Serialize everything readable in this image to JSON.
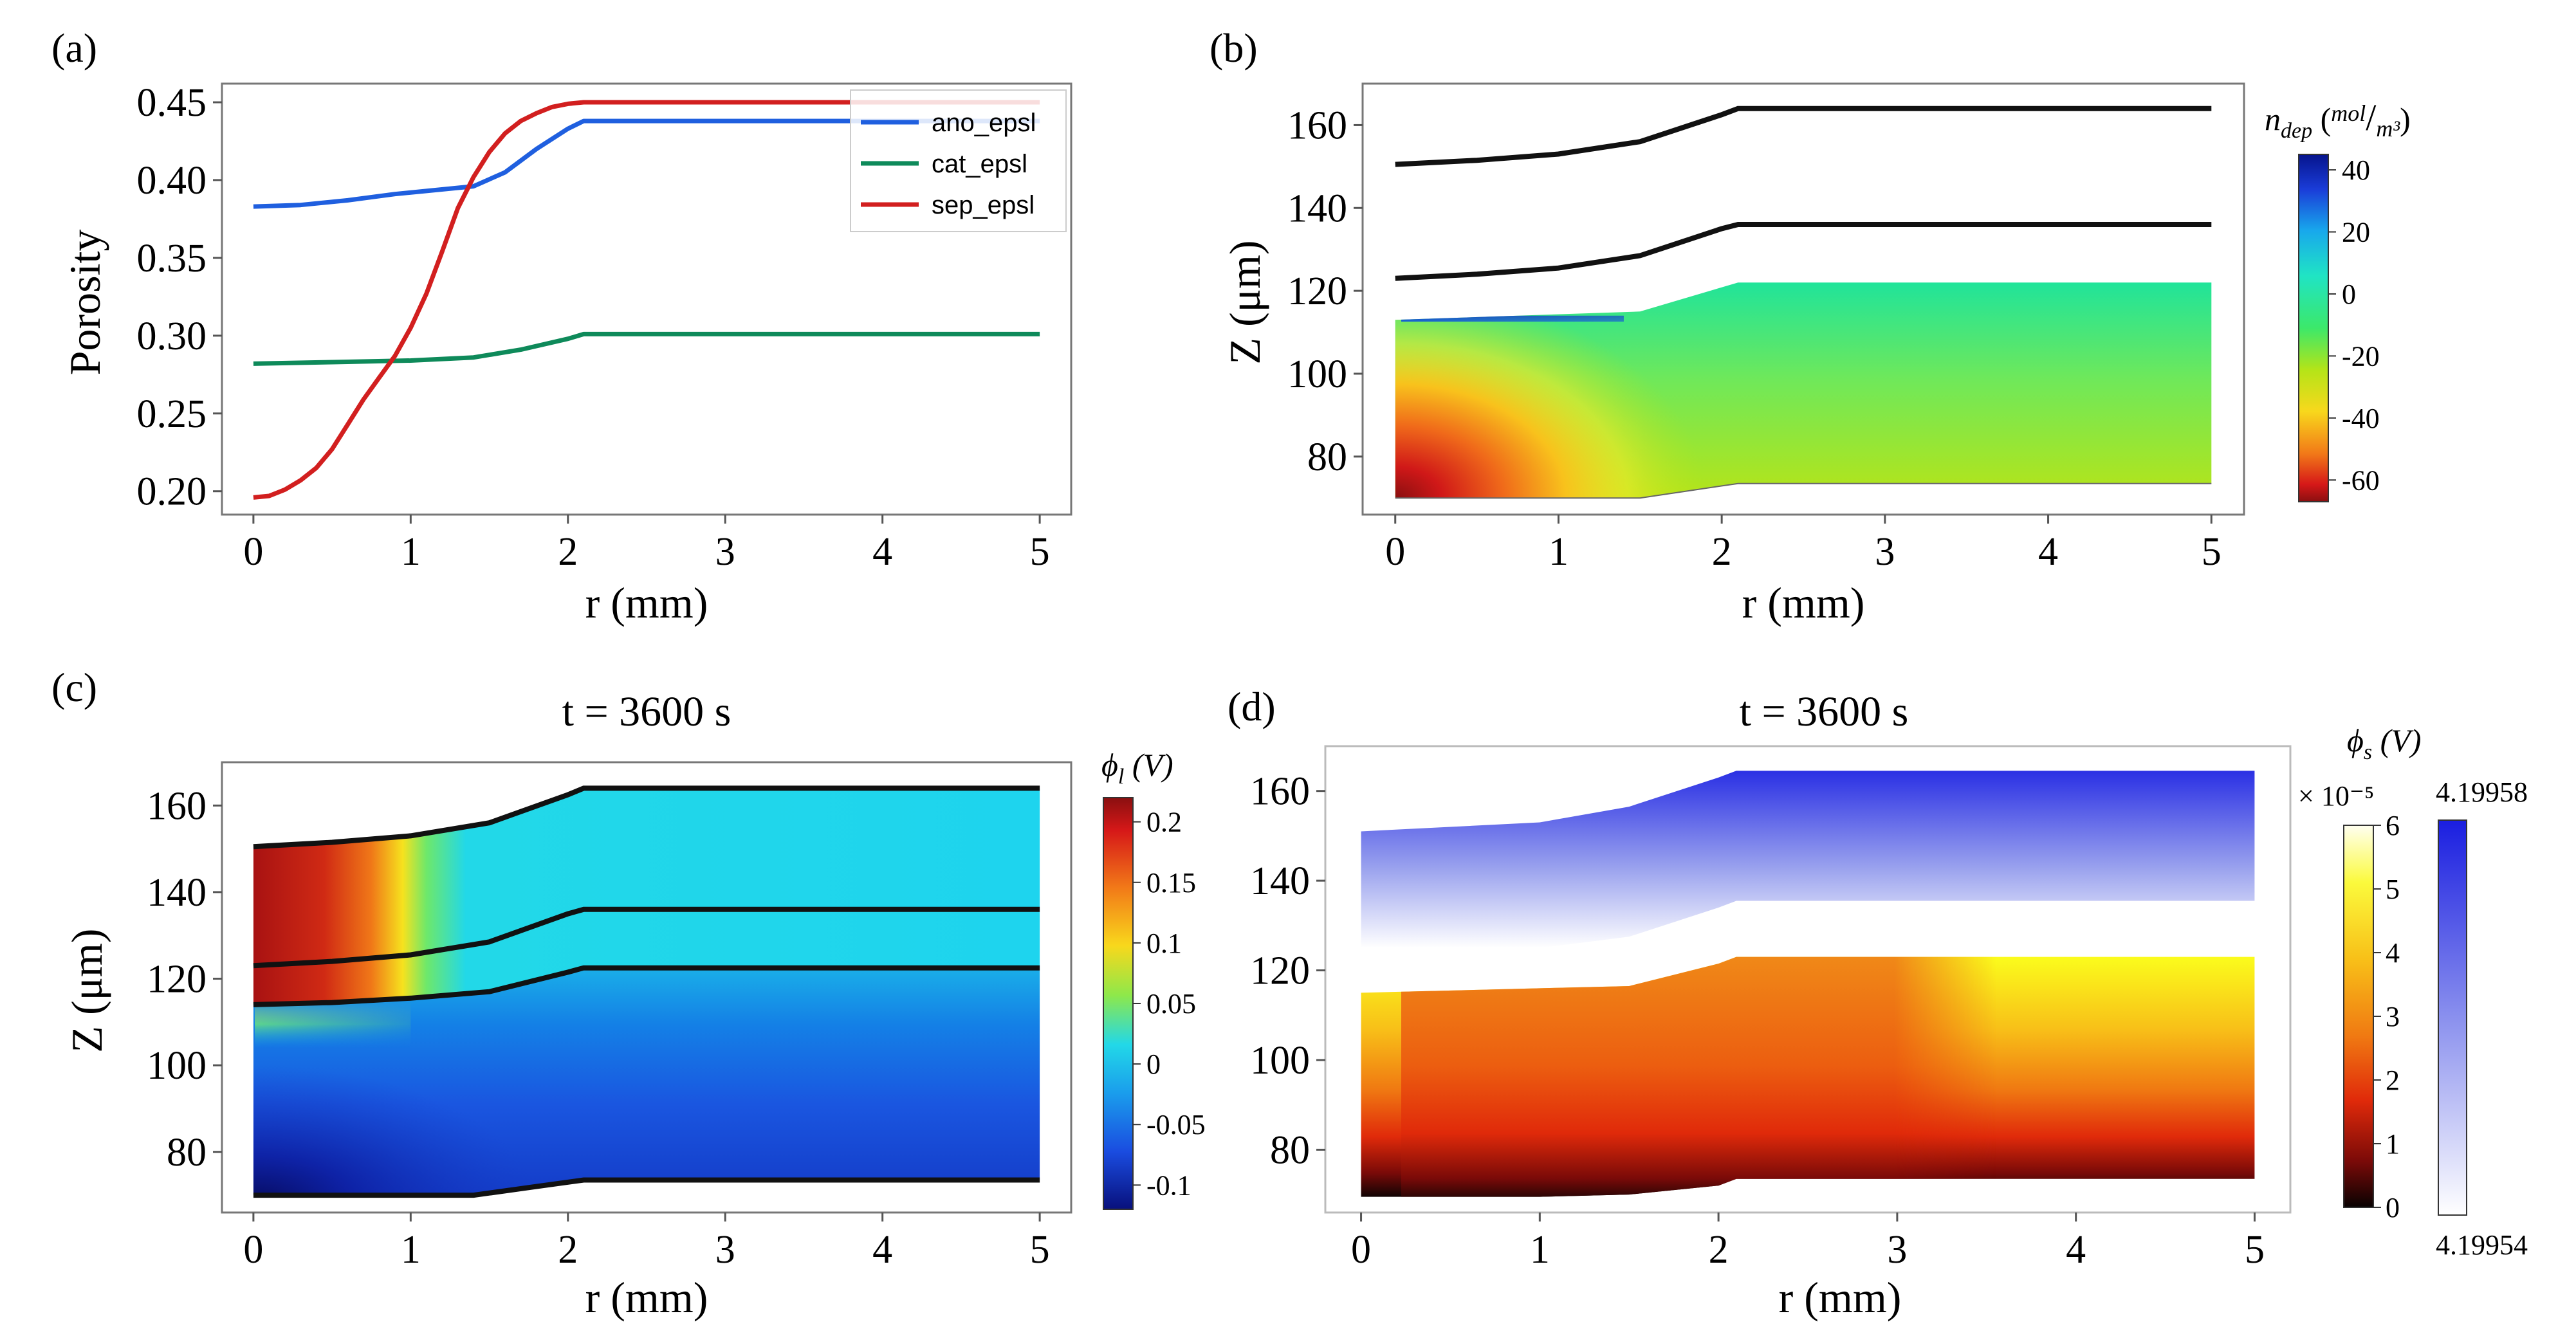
{
  "chart_data": [
    {
      "id": "a",
      "panel_label": "(a)",
      "type": "line",
      "title": "",
      "xlabel": "r (mm)",
      "ylabel": "Porosity",
      "xlim": [
        -0.2,
        5.2
      ],
      "ylim": [
        0.185,
        0.462
      ],
      "xticks": [
        0,
        1,
        2,
        3,
        4,
        5
      ],
      "xtick_labels": [
        "0",
        "1",
        "2",
        "3",
        "4",
        "5"
      ],
      "yticks": [
        0.2,
        0.25,
        0.3,
        0.35,
        0.4,
        0.45
      ],
      "ytick_labels": [
        "0.20",
        "0.25",
        "0.30",
        "0.35",
        "0.40",
        "0.45"
      ],
      "legend_position": "top-right",
      "series": [
        {
          "name": "ano_epsl",
          "color": "#1f5fdf",
          "x": [
            0,
            0.3,
            0.6,
            0.9,
            1.1,
            1.4,
            1.6,
            1.8,
            2.0,
            2.1,
            3,
            4,
            5
          ],
          "y": [
            0.383,
            0.384,
            0.387,
            0.391,
            0.393,
            0.396,
            0.405,
            0.42,
            0.433,
            0.438,
            0.438,
            0.438,
            0.438
          ]
        },
        {
          "name": "cat_epsl",
          "color": "#0e8a5a",
          "x": [
            0,
            0.5,
            1.0,
            1.4,
            1.7,
            2.0,
            2.1,
            3,
            4,
            5
          ],
          "y": [
            0.282,
            0.283,
            0.284,
            0.286,
            0.291,
            0.298,
            0.301,
            0.301,
            0.301,
            0.301
          ]
        },
        {
          "name": "sep_epsl",
          "color": "#d21f1f",
          "x": [
            0,
            0.1,
            0.2,
            0.3,
            0.4,
            0.5,
            0.6,
            0.7,
            0.8,
            0.9,
            1.0,
            1.1,
            1.2,
            1.3,
            1.4,
            1.5,
            1.6,
            1.7,
            1.8,
            1.9,
            2.0,
            2.1,
            2.5,
            3,
            4,
            5
          ],
          "y": [
            0.196,
            0.197,
            0.201,
            0.207,
            0.215,
            0.227,
            0.243,
            0.259,
            0.273,
            0.287,
            0.305,
            0.327,
            0.354,
            0.382,
            0.402,
            0.418,
            0.43,
            0.438,
            0.443,
            0.447,
            0.449,
            0.45,
            0.45,
            0.45,
            0.45,
            0.45
          ]
        }
      ]
    },
    {
      "id": "b",
      "panel_label": "(b)",
      "type": "heatmap",
      "title": "",
      "xlabel": "r (mm)",
      "ylabel": "Z (μm)",
      "xlim": [
        -0.2,
        5.2
      ],
      "ylim": [
        66,
        170
      ],
      "xticks": [
        0,
        1,
        2,
        3,
        4,
        5
      ],
      "xtick_labels": [
        "0",
        "1",
        "2",
        "3",
        "4",
        "5"
      ],
      "yticks": [
        80,
        100,
        120,
        140,
        160
      ],
      "ytick_labels": [
        "80",
        "100",
        "120",
        "140",
        "160"
      ],
      "boundary_lines": [
        {
          "x": [
            0,
            0.5,
            1.0,
            1.5,
            2.0,
            2.1,
            5
          ],
          "y": [
            150.5,
            151.5,
            153,
            156,
            162.5,
            164,
            164
          ]
        },
        {
          "x": [
            0,
            0.5,
            1.0,
            1.5,
            2.0,
            2.1,
            5
          ],
          "y": [
            123,
            124,
            125.5,
            128.5,
            135,
            136,
            136
          ]
        }
      ],
      "field_region": {
        "x": [
          0,
          1.5,
          2.1,
          5
        ],
        "top": [
          113,
          115,
          122,
          122
        ],
        "bottom": [
          70,
          70,
          73.5,
          73.5
        ]
      },
      "colorbar": {
        "title": "n_dep (mol/m³)",
        "min": -67,
        "max": 45,
        "ticks": [
          40,
          20,
          0,
          -20,
          -40,
          -60
        ],
        "tick_labels": [
          "40",
          "20",
          "0",
          "-20",
          "-40",
          "-60"
        ]
      }
    },
    {
      "id": "c",
      "panel_label": "(c)",
      "type": "heatmap",
      "title": "t = 3600 s",
      "xlabel": "r (mm)",
      "ylabel": "Z (μm)",
      "xlim": [
        -0.2,
        5.2
      ],
      "ylim": [
        66,
        170
      ],
      "xticks": [
        0,
        1,
        2,
        3,
        4,
        5
      ],
      "xtick_labels": [
        "0",
        "1",
        "2",
        "3",
        "4",
        "5"
      ],
      "yticks": [
        80,
        100,
        120,
        140,
        160
      ],
      "ytick_labels": [
        "80",
        "100",
        "120",
        "140",
        "160"
      ],
      "boundary_lines": [
        {
          "x": [
            0,
            0.5,
            1.0,
            1.5,
            2.0,
            2.1,
            5
          ],
          "y": [
            150.5,
            151.5,
            153,
            156,
            162.5,
            164,
            164
          ]
        },
        {
          "x": [
            0,
            0.5,
            1.0,
            1.5,
            2.0,
            2.1,
            5
          ],
          "y": [
            123,
            124,
            125.5,
            128.5,
            135,
            136,
            136
          ]
        },
        {
          "x": [
            0,
            0.5,
            1.0,
            1.5,
            2.0,
            2.1,
            5
          ],
          "y": [
            114,
            114.5,
            115.5,
            117,
            121.5,
            122.5,
            122.5
          ]
        },
        {
          "x": [
            0,
            1.0,
            1.4,
            1.8,
            2.1,
            5
          ],
          "y": [
            70,
            70,
            70,
            72,
            73.5,
            73.5
          ]
        }
      ],
      "colorbar": {
        "title": "ϕl (V)",
        "min": -0.12,
        "max": 0.22,
        "ticks": [
          0.2,
          0.15,
          0.1,
          0.05,
          0,
          -0.05,
          -0.1
        ],
        "tick_labels": [
          "0.2",
          "0.15",
          "0.1",
          "0.05",
          "0",
          "-0.05",
          "-0.1"
        ]
      }
    },
    {
      "id": "d",
      "panel_label": "(d)",
      "type": "heatmap",
      "title": "t = 3600 s",
      "xlabel": "r (mm)",
      "ylabel": "",
      "xlim": [
        -0.2,
        5.2
      ],
      "ylim": [
        66,
        170
      ],
      "xticks": [
        0,
        1,
        2,
        3,
        4,
        5
      ],
      "xtick_labels": [
        "0",
        "1",
        "2",
        "3",
        "4",
        "5"
      ],
      "yticks": [
        80,
        100,
        120,
        140,
        160
      ],
      "ytick_labels": [
        "80",
        "100",
        "120",
        "140",
        "160"
      ],
      "cathode_region": {
        "x": [
          0,
          1.0,
          1.5,
          2.0,
          2.1,
          5
        ],
        "top": [
          151,
          153,
          156.5,
          163,
          164.5,
          164.5
        ],
        "bottom": [
          125,
          125,
          127.5,
          134,
          135.5,
          135.5
        ]
      },
      "anode_region": {
        "x": [
          0,
          1.0,
          1.5,
          2.0,
          2.1,
          5
        ],
        "top": [
          115,
          116,
          116.5,
          121.5,
          123,
          123
        ],
        "bottom": [
          69.5,
          69.5,
          70,
          72,
          73.5,
          73.5
        ]
      },
      "colorbar_left": {
        "title": "× 10⁻⁵",
        "min": 0,
        "max": 6,
        "ticks": [
          6,
          5,
          4,
          3,
          2,
          1,
          0
        ],
        "tick_labels": [
          "6",
          "5",
          "4",
          "3",
          "2",
          "1",
          "0"
        ]
      },
      "colorbar_right": {
        "title": "ϕs (V)",
        "max_label": "4.19958",
        "min_label": "4.19954"
      }
    }
  ]
}
